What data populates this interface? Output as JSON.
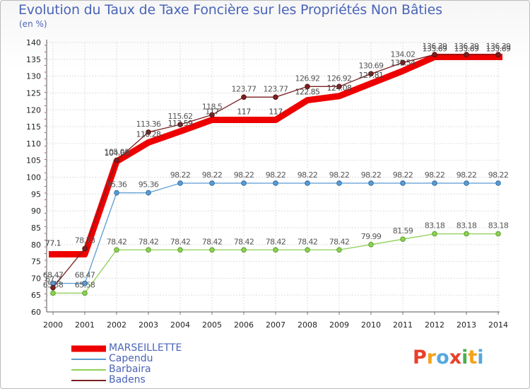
{
  "header": {
    "title": "Evolution du Taux de Taxe Foncière sur les Propriétés Non Bâties",
    "unit": "(en %)"
  },
  "logo": {
    "text": "Proxiti",
    "colors": [
      "#e8402a",
      "#f5a21b",
      "#55a8dd",
      "#e8402a",
      "#4caf50",
      "#f5a21b",
      "#55a8dd"
    ]
  },
  "chart_data": {
    "type": "line",
    "title": "Evolution du Taux de Taxe Foncière sur les Propriétés Non Bâties",
    "ylabel": "(en %)",
    "xlabel": "",
    "ylim": [
      60,
      140
    ],
    "yticks": [
      60,
      65,
      70,
      75,
      80,
      85,
      90,
      95,
      100,
      105,
      110,
      115,
      120,
      125,
      130,
      135,
      140
    ],
    "categories": [
      "2000",
      "2001",
      "2002",
      "2003",
      "2004",
      "2005",
      "2006",
      "2007",
      "2008",
      "2009",
      "2010",
      "2011",
      "2012",
      "2013",
      "2014"
    ],
    "legend_position": "bottom-left",
    "series": [
      {
        "name": "MARSEILLETTE",
        "color": "#ee0000",
        "values": [
          77.1,
          77.1,
          104.68,
          110.28,
          113.59,
          117,
          117,
          117,
          122.85,
          124.08,
          127.81,
          131.54,
          135.69,
          135.69,
          135.69
        ],
        "labels": [
          "77.1",
          "",
          "104.68",
          "110.28",
          "113.59",
          "117",
          "117",
          "117",
          "122.85",
          "124.08",
          "127.81",
          "131.54",
          "135.69",
          "135.69",
          "135.69"
        ]
      },
      {
        "name": "Capendu",
        "color": "#5a9bd0",
        "values": [
          68.47,
          68.47,
          95.36,
          95.36,
          98.22,
          98.22,
          98.22,
          98.22,
          98.22,
          98.22,
          98.22,
          98.22,
          98.22,
          98.22,
          98.22
        ],
        "labels": [
          "68.47",
          "68.47",
          "95.36",
          "95.36",
          "98.22",
          "98.22",
          "98.22",
          "98.22",
          "98.22",
          "98.22",
          "98.22",
          "98.22",
          "98.22",
          "98.22",
          "98.22"
        ]
      },
      {
        "name": "Barbaira",
        "color": "#8ed055",
        "values": [
          65.58,
          65.58,
          78.42,
          78.42,
          78.42,
          78.42,
          78.42,
          78.42,
          78.42,
          78.42,
          79.99,
          81.59,
          83.18,
          83.18,
          83.18
        ],
        "labels": [
          "65.58",
          "65.58",
          "78.42",
          "78.42",
          "78.42",
          "78.42",
          "78.42",
          "78.42",
          "78.42",
          "78.42",
          "79.99",
          "81.59",
          "83.18",
          "83.18",
          "83.18"
        ]
      },
      {
        "name": "Badens",
        "color": "#7a2020",
        "values": [
          67.2,
          78.78,
          105.03,
          113.36,
          115.62,
          118.5,
          123.77,
          123.77,
          126.92,
          126.92,
          130.69,
          134.02,
          136.39,
          136.39,
          136.39
        ],
        "labels": [
          "67.2",
          "78.78",
          "105.03",
          "113.36",
          "115.62",
          "118.5",
          "123.77",
          "123.77",
          "126.92",
          "126.92",
          "130.69",
          "134.02",
          "136.39",
          "136.39",
          "136.39"
        ]
      }
    ]
  }
}
